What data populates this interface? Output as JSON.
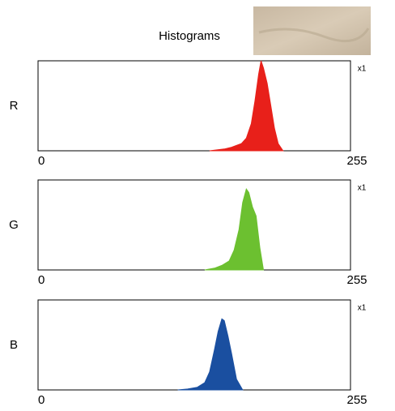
{
  "title": "Histograms",
  "chart_data": [
    {
      "type": "area",
      "label": "R",
      "scale_label": "x1",
      "color": "#e8201a",
      "x": [
        140,
        146,
        152,
        158,
        162,
        166,
        170,
        174,
        177,
        180,
        182,
        184,
        187,
        190,
        193,
        196,
        200
      ],
      "values": [
        0,
        1,
        2,
        4,
        6,
        8,
        14,
        30,
        55,
        85,
        100,
        92,
        75,
        50,
        25,
        8,
        0
      ],
      "xlim": [
        0,
        255
      ],
      "xticks": [
        0,
        255
      ],
      "ylim": [
        0,
        100
      ]
    },
    {
      "type": "area",
      "label": "G",
      "scale_label": "x1",
      "color": "#6cc030",
      "x": [
        136,
        144,
        150,
        156,
        160,
        164,
        167,
        170,
        172,
        175,
        178,
        181,
        184
      ],
      "values": [
        0,
        2,
        5,
        10,
        22,
        45,
        75,
        90,
        86,
        70,
        60,
        25,
        0
      ],
      "xlim": [
        0,
        255
      ],
      "xticks": [
        0,
        255
      ],
      "ylim": [
        0,
        100
      ]
    },
    {
      "type": "area",
      "label": "B",
      "scale_label": "x1",
      "color": "#1a4fa0",
      "x": [
        114,
        122,
        130,
        136,
        140,
        144,
        147,
        150,
        152,
        155,
        158,
        162,
        167
      ],
      "values": [
        0,
        1,
        3,
        8,
        20,
        45,
        65,
        79,
        77,
        60,
        40,
        12,
        0
      ],
      "xlim": [
        0,
        255
      ],
      "xticks": [
        0,
        255
      ],
      "ylim": [
        0,
        100
      ]
    }
  ]
}
